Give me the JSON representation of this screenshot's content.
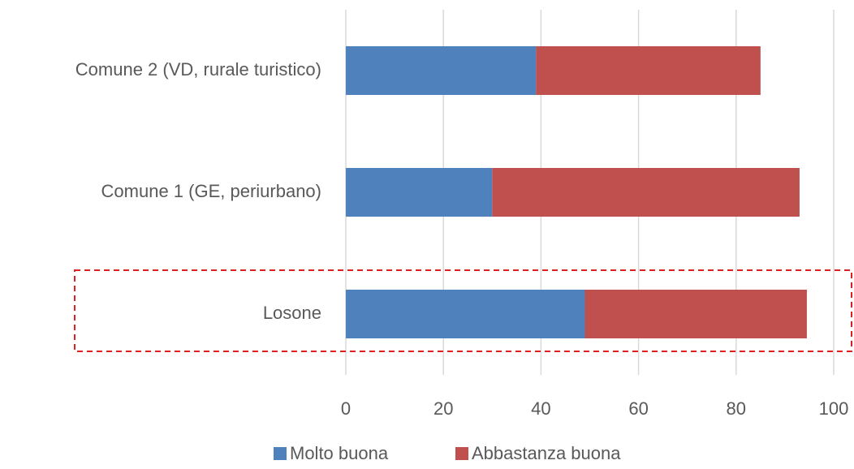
{
  "chart_data": {
    "type": "stacked-bar-horizontal",
    "categories": [
      "Comune 2 (VD, rurale turistico)",
      "Comune 1 (GE, periurbano)",
      "Losone"
    ],
    "series": [
      {
        "name": "Molto buona",
        "color": "#4f81bd",
        "values": [
          39,
          30,
          49
        ]
      },
      {
        "name": "Abbastanza buona",
        "color": "#c0504d",
        "values": [
          46,
          63,
          45.5
        ]
      }
    ],
    "xlim": [
      0,
      100
    ],
    "xticks": [
      0,
      20,
      40,
      60,
      80,
      100
    ],
    "grid": true,
    "legend": "bottom"
  }
}
